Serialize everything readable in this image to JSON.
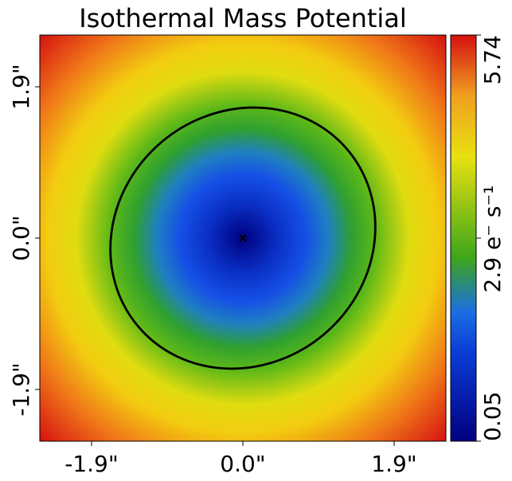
{
  "chart_data": {
    "type": "heatmap",
    "title": "Isothermal Mass Potential",
    "xlabel": "",
    "ylabel": "",
    "x_ticks": [
      {
        "value": -1.9,
        "label": "-1.9\""
      },
      {
        "value": 0.0,
        "label": "0.0\""
      },
      {
        "value": 1.9,
        "label": "1.9\""
      }
    ],
    "y_ticks": [
      {
        "value": 1.9,
        "label": "1.9\""
      },
      {
        "value": 0.0,
        "label": "0.0\""
      },
      {
        "value": -1.9,
        "label": "-1.9\""
      }
    ],
    "xlim": [
      -2.55,
      2.55
    ],
    "ylim": [
      -2.55,
      2.55
    ],
    "colorbar": {
      "label": "2.9 e⁻ s⁻¹",
      "min": 0.05,
      "max": 5.74,
      "tick_labels": [
        "0.05",
        "5.74"
      ],
      "colormap": [
        "#00007f",
        "#0b3dd6",
        "#1b6fe0",
        "#3da61a",
        "#e8e010",
        "#f0a020",
        "#d41010"
      ]
    },
    "critical_curve": {
      "center": [
        0.0,
        0.0
      ],
      "semi_major": 1.72,
      "semi_minor": 1.58,
      "angle_deg": 40
    },
    "center_marker": [
      0.0,
      0.0
    ],
    "grid": false,
    "legend": "none"
  }
}
